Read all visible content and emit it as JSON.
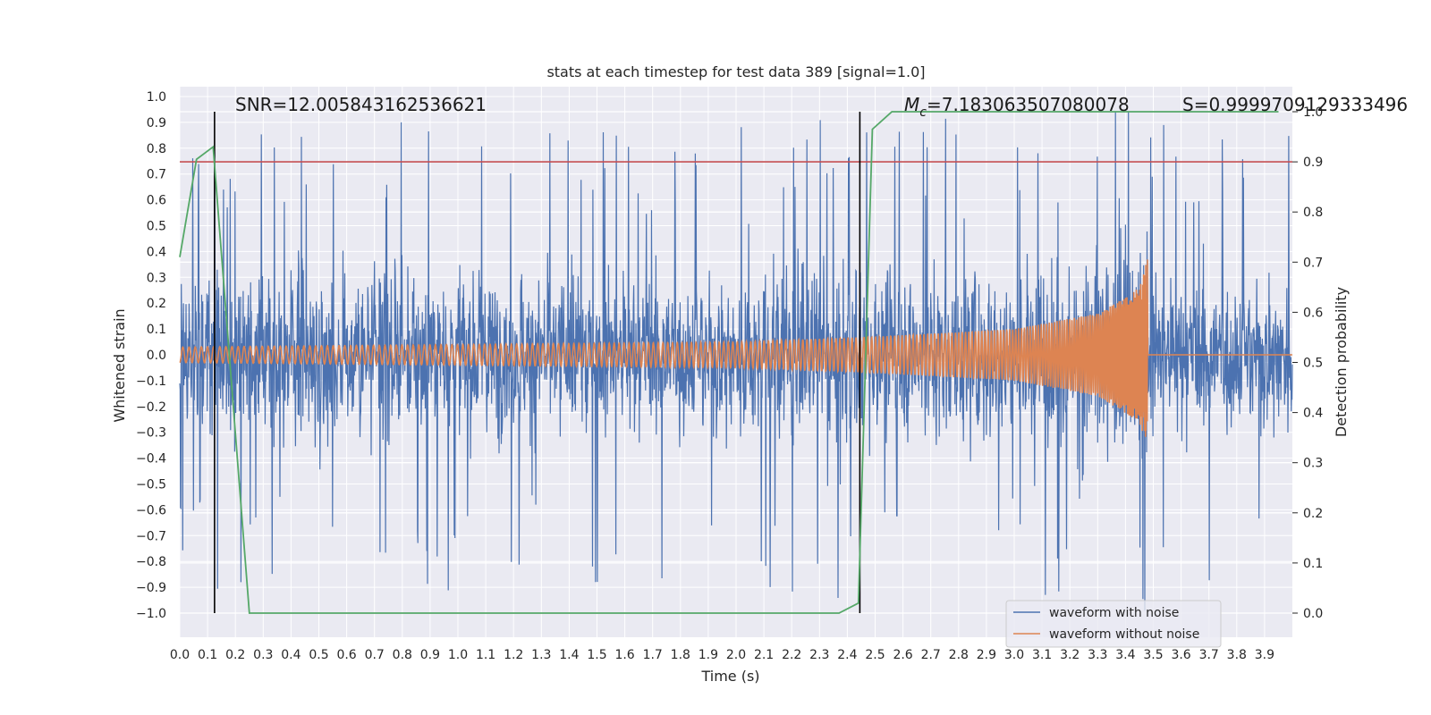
{
  "chart_data": {
    "type": "line",
    "title": "stats at each timestep for test data 389 [signal=1.0]",
    "xlabel": "Time (s)",
    "ylabel_left": "Whitened strain",
    "ylabel_right": "Detection probability",
    "xlim": [
      0.0,
      4.0
    ],
    "ylim_left": [
      -1.1,
      1.05
    ],
    "ylim_right": [
      -0.05,
      1.0
    ],
    "grid": true,
    "x_ticks": [
      "0.0",
      "0.1",
      "0.2",
      "0.3",
      "0.4",
      "0.5",
      "0.6",
      "0.7",
      "0.8",
      "0.9",
      "1.0",
      "1.1",
      "1.2",
      "1.3",
      "1.4",
      "1.5",
      "1.6",
      "1.7",
      "1.8",
      "1.9",
      "2.0",
      "2.1",
      "2.2",
      "2.3",
      "2.4",
      "2.5",
      "2.6",
      "2.7",
      "2.8",
      "2.9",
      "3.0",
      "3.1",
      "3.2",
      "3.3",
      "3.4",
      "3.5",
      "3.6",
      "3.7",
      "3.8",
      "3.9"
    ],
    "y_left_ticks": [
      "1.0",
      "0.9",
      "0.8",
      "0.7",
      "0.6",
      "0.5",
      "0.4",
      "0.3",
      "0.2",
      "0.1",
      "0.0",
      "-0.1",
      "-0.2",
      "-0.3",
      "-0.4",
      "-0.5",
      "-0.6",
      "-0.7",
      "-0.8",
      "-0.9",
      "-1.0"
    ],
    "y_right_ticks": [
      "1.0",
      "0.9",
      "0.8",
      "0.7",
      "0.6",
      "0.5",
      "0.4",
      "0.3",
      "0.2",
      "0.1",
      "0.0"
    ],
    "annotations": {
      "snr": "SNR=12.005843162536621",
      "mc": "=7.183063507080078",
      "mc_symbol": "M",
      "mc_subscript": "c",
      "s": "S=0.9999709129333496"
    },
    "threshold": {
      "value": 0.9,
      "color": "#c44e52"
    },
    "vertical_markers": [
      0.125,
      2.445
    ],
    "series": [
      {
        "name": "waveform with noise",
        "color": "#4c72b0",
        "axis": "left",
        "description_of_values": "noisy whitened strain, mostly within -0.6..0.6 with spikes to about +/-0.9"
      },
      {
        "name": "waveform without noise",
        "color": "#dd8452",
        "axis": "left",
        "envelope": [
          {
            "x": 0.0,
            "amp": 0.03
          },
          {
            "x": 1.0,
            "amp": 0.04
          },
          {
            "x": 2.0,
            "amp": 0.05
          },
          {
            "x": 2.5,
            "amp": 0.07
          },
          {
            "x": 3.0,
            "amp": 0.1
          },
          {
            "x": 3.3,
            "amp": 0.16
          },
          {
            "x": 3.45,
            "amp": 0.26
          },
          {
            "x": 3.48,
            "amp": 0.38
          }
        ],
        "merger_time": 3.48,
        "post_merger_value": 0.0
      },
      {
        "name": "detection probability",
        "color": "#55a868",
        "axis": "right",
        "x": [
          0.0,
          0.06,
          0.12,
          0.25,
          0.29,
          2.37,
          2.44,
          2.49,
          2.56,
          3.95
        ],
        "y": [
          0.71,
          0.905,
          0.93,
          0.0,
          0.0,
          0.0,
          0.02,
          0.965,
          1.0,
          1.0
        ]
      }
    ],
    "legend": {
      "position": "lower-right",
      "entries": [
        "waveform with noise",
        "waveform without noise"
      ]
    }
  }
}
